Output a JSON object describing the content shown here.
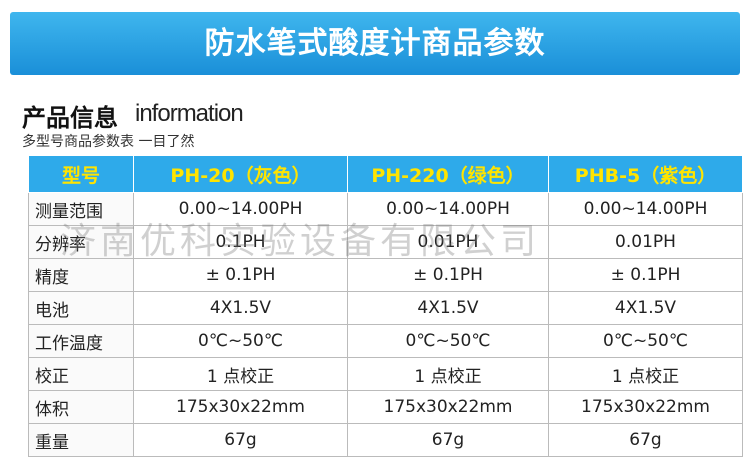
{
  "header": {
    "title": "防水笔式酸度计商品参数"
  },
  "section": {
    "title": "产品信息",
    "title_en": "information",
    "subtitle": "多型号商品参数表 一目了然"
  },
  "table": {
    "header": [
      "型号",
      "PH-20（灰色）",
      "PH-220（绿色）",
      "PHB-5（紫色）"
    ],
    "rows": [
      [
        "测量范围",
        "0.00~14.00PH",
        "0.00~14.00PH",
        "0.00~14.00PH"
      ],
      [
        "分辨率",
        "0.1PH",
        "0.01PH",
        "0.01PH"
      ],
      [
        "精度",
        "± 0.1PH",
        "± 0.1PH",
        "± 0.1PH"
      ],
      [
        "电池",
        "4X1.5V",
        "4X1.5V",
        "4X1.5V"
      ],
      [
        "工作温度",
        "0℃~50℃",
        "0℃~50℃",
        "0℃~50℃"
      ],
      [
        "校正",
        "1 点校正",
        "1 点校正",
        "1 点校正"
      ],
      [
        "体积",
        "175x30x22mm",
        "175x30x22mm",
        "175x30x22mm"
      ],
      [
        "重量",
        "67g",
        "67g",
        "67g"
      ]
    ]
  },
  "watermark": "济南优科实验设备有限公司"
}
